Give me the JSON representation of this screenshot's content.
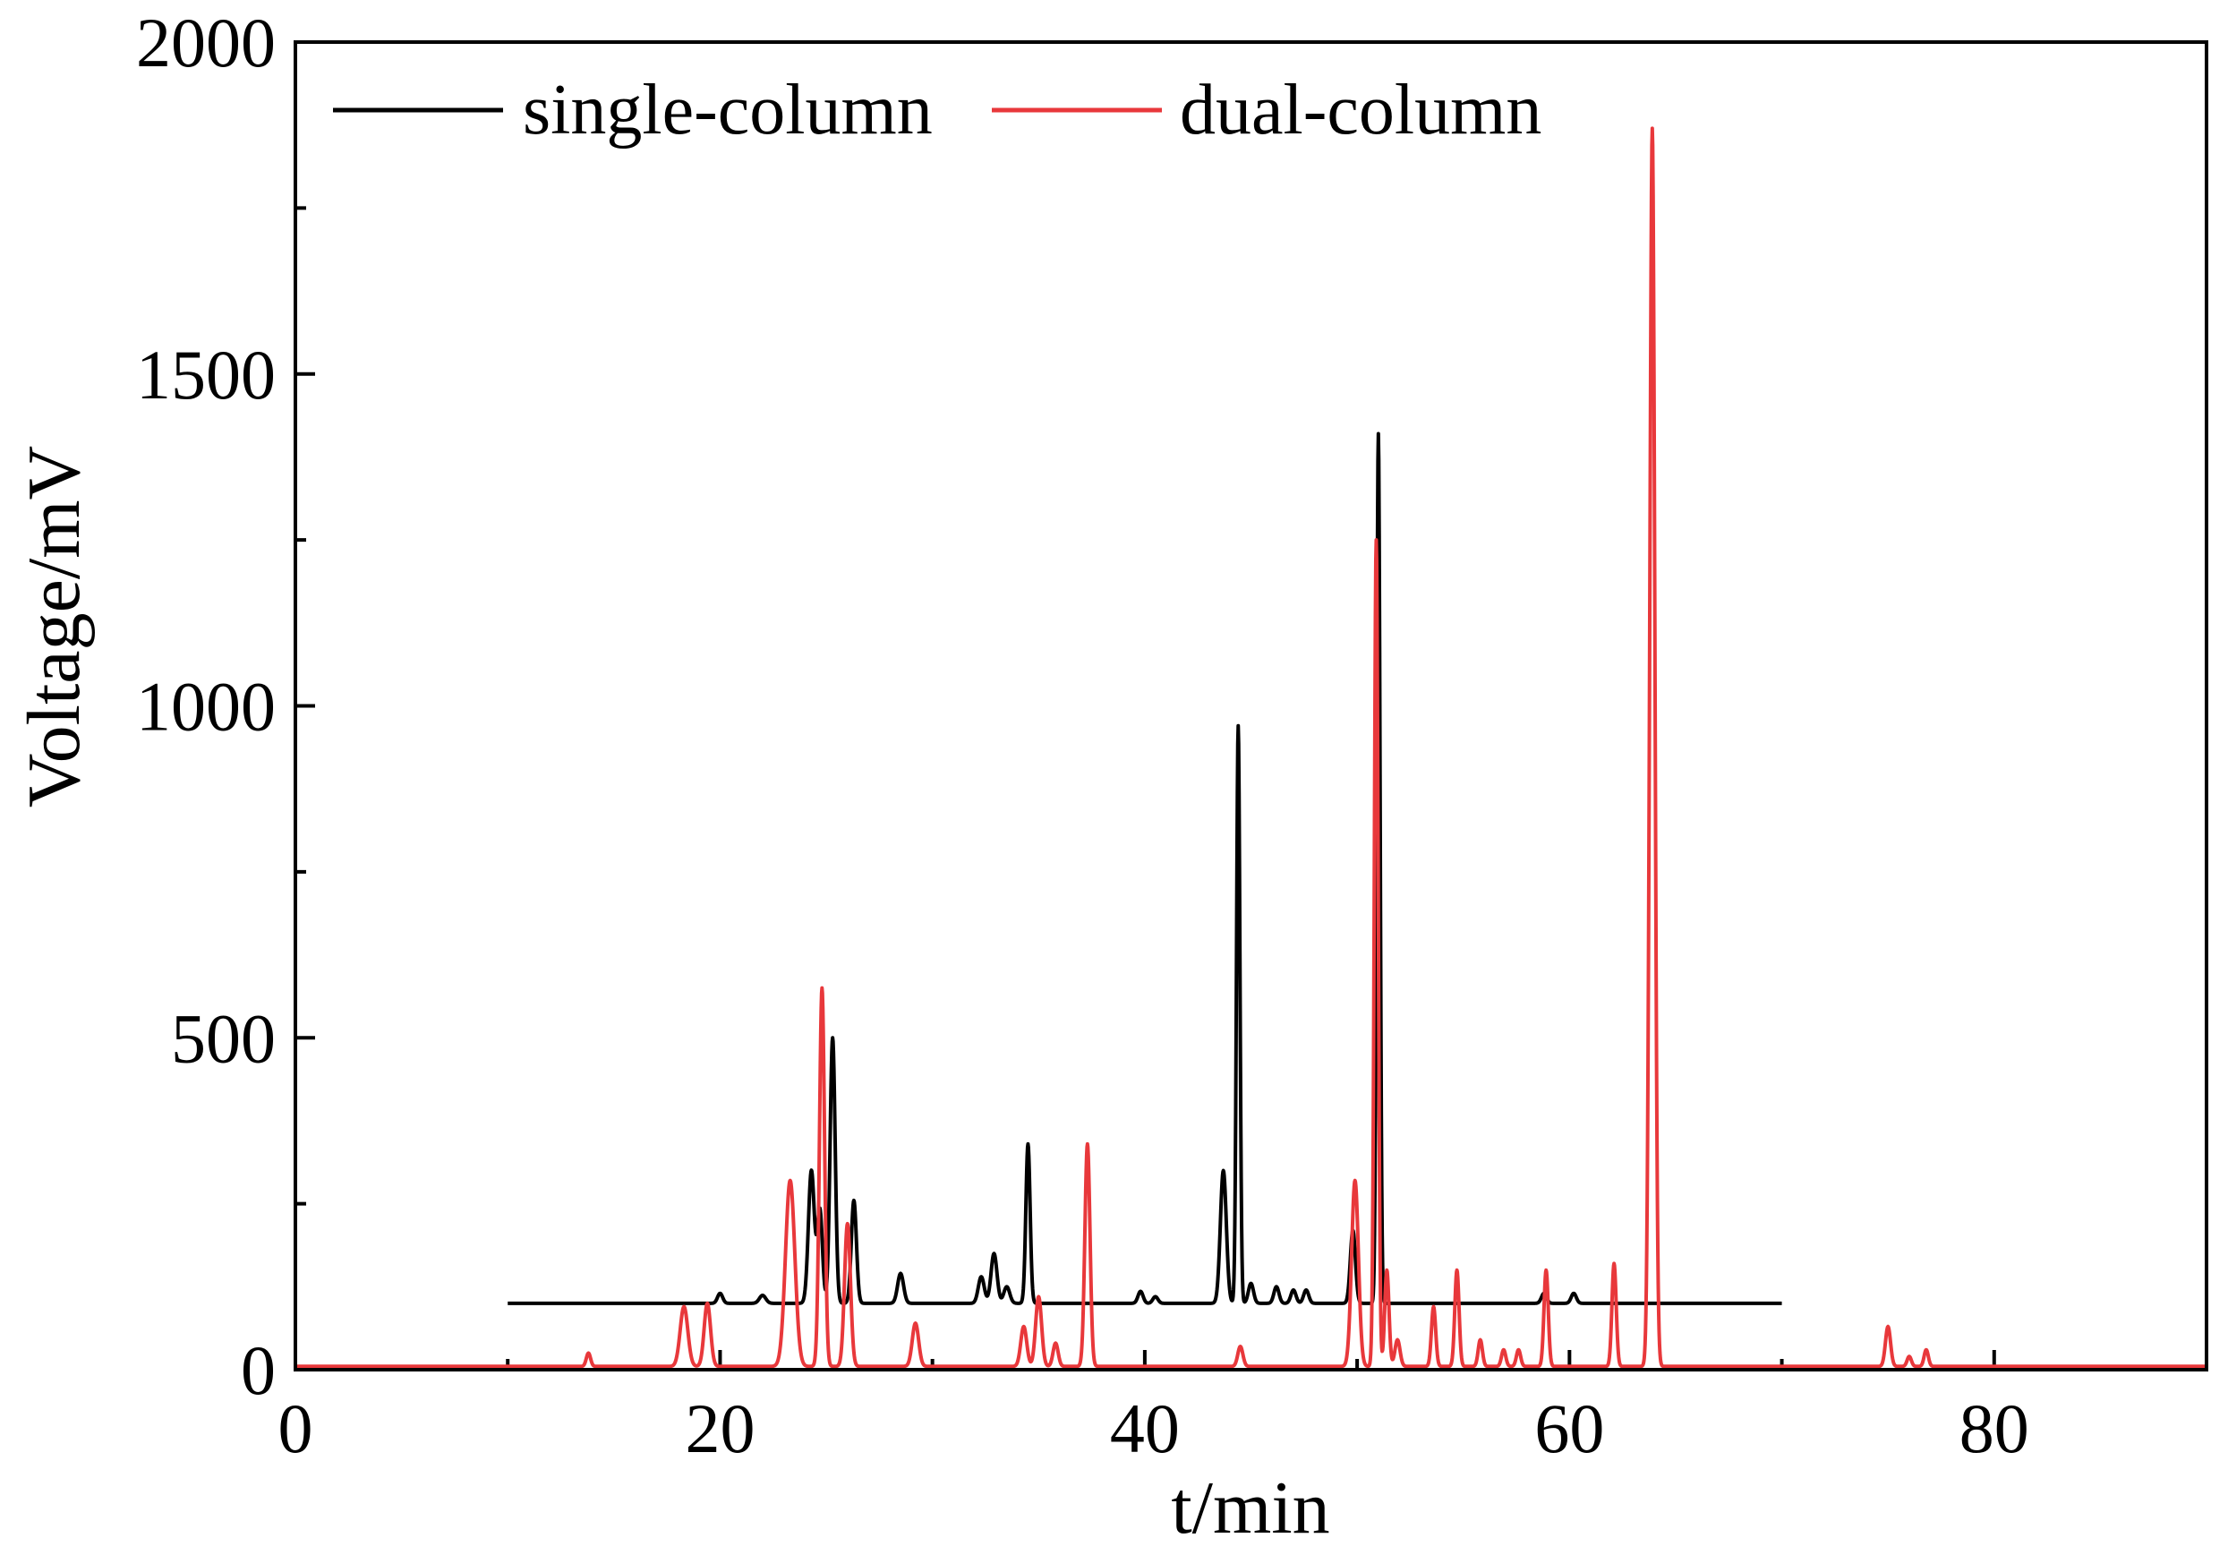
{
  "chart_data": {
    "type": "line",
    "title": "",
    "xlabel": "t/min",
    "ylabel": "Voltage/mV",
    "xlim": [
      0,
      90
    ],
    "ylim": [
      0,
      2000
    ],
    "x_ticks": [
      0,
      20,
      40,
      60,
      80
    ],
    "y_ticks": [
      0,
      500,
      1000,
      1500,
      2000
    ],
    "x_tick_labels": [
      "0",
      "20",
      "40",
      "60",
      "80"
    ],
    "y_tick_labels": [
      "0",
      "500",
      "1000",
      "1500",
      "2000"
    ],
    "grid": false,
    "legend_position": "top-left",
    "series": [
      {
        "name": "single-column",
        "color": "#000000",
        "x_range": [
          10,
          70
        ],
        "baseline": 100,
        "peaks": [
          {
            "t": 20.0,
            "v": 115,
            "w": 0.12
          },
          {
            "t": 22.0,
            "v": 112,
            "w": 0.15
          },
          {
            "t": 24.3,
            "v": 300,
            "w": 0.14
          },
          {
            "t": 24.7,
            "v": 240,
            "w": 0.12
          },
          {
            "t": 25.3,
            "v": 500,
            "w": 0.12
          },
          {
            "t": 26.3,
            "v": 255,
            "w": 0.12
          },
          {
            "t": 28.5,
            "v": 145,
            "w": 0.14
          },
          {
            "t": 32.3,
            "v": 140,
            "w": 0.14
          },
          {
            "t": 32.9,
            "v": 175,
            "w": 0.14
          },
          {
            "t": 33.5,
            "v": 125,
            "w": 0.14
          },
          {
            "t": 34.5,
            "v": 340,
            "w": 0.1
          },
          {
            "t": 39.8,
            "v": 118,
            "w": 0.12
          },
          {
            "t": 40.5,
            "v": 110,
            "w": 0.12
          },
          {
            "t": 43.7,
            "v": 300,
            "w": 0.14
          },
          {
            "t": 44.4,
            "v": 970,
            "w": 0.08
          },
          {
            "t": 45.0,
            "v": 130,
            "w": 0.12
          },
          {
            "t": 46.2,
            "v": 125,
            "w": 0.12
          },
          {
            "t": 47.0,
            "v": 120,
            "w": 0.12
          },
          {
            "t": 47.6,
            "v": 120,
            "w": 0.12
          },
          {
            "t": 49.8,
            "v": 210,
            "w": 0.12
          },
          {
            "t": 51.0,
            "v": 1410,
            "w": 0.08
          },
          {
            "t": 58.8,
            "v": 115,
            "w": 0.12
          },
          {
            "t": 60.2,
            "v": 115,
            "w": 0.12
          }
        ]
      },
      {
        "name": "dual-column",
        "color": "#e8383b",
        "x_range": [
          0,
          90
        ],
        "baseline": 5,
        "peaks": [
          {
            "t": 13.8,
            "v": 25,
            "w": 0.1
          },
          {
            "t": 18.3,
            "v": 95,
            "w": 0.18
          },
          {
            "t": 19.4,
            "v": 100,
            "w": 0.15
          },
          {
            "t": 23.3,
            "v": 285,
            "w": 0.22
          },
          {
            "t": 24.8,
            "v": 575,
            "w": 0.12
          },
          {
            "t": 26.0,
            "v": 220,
            "w": 0.14
          },
          {
            "t": 29.2,
            "v": 70,
            "w": 0.15
          },
          {
            "t": 34.3,
            "v": 65,
            "w": 0.14
          },
          {
            "t": 35.0,
            "v": 110,
            "w": 0.14
          },
          {
            "t": 35.8,
            "v": 40,
            "w": 0.12
          },
          {
            "t": 37.3,
            "v": 340,
            "w": 0.12
          },
          {
            "t": 44.5,
            "v": 35,
            "w": 0.12
          },
          {
            "t": 49.9,
            "v": 285,
            "w": 0.16
          },
          {
            "t": 50.9,
            "v": 1250,
            "w": 0.09
          },
          {
            "t": 51.4,
            "v": 150,
            "w": 0.1
          },
          {
            "t": 51.9,
            "v": 45,
            "w": 0.12
          },
          {
            "t": 53.6,
            "v": 95,
            "w": 0.1
          },
          {
            "t": 54.7,
            "v": 150,
            "w": 0.1
          },
          {
            "t": 55.8,
            "v": 45,
            "w": 0.1
          },
          {
            "t": 56.9,
            "v": 30,
            "w": 0.1
          },
          {
            "t": 57.6,
            "v": 30,
            "w": 0.1
          },
          {
            "t": 58.9,
            "v": 150,
            "w": 0.1
          },
          {
            "t": 62.1,
            "v": 160,
            "w": 0.1
          },
          {
            "t": 63.9,
            "v": 1870,
            "w": 0.12
          },
          {
            "t": 75.0,
            "v": 65,
            "w": 0.12
          },
          {
            "t": 76.0,
            "v": 20,
            "w": 0.1
          },
          {
            "t": 76.8,
            "v": 30,
            "w": 0.1
          }
        ]
      }
    ]
  }
}
